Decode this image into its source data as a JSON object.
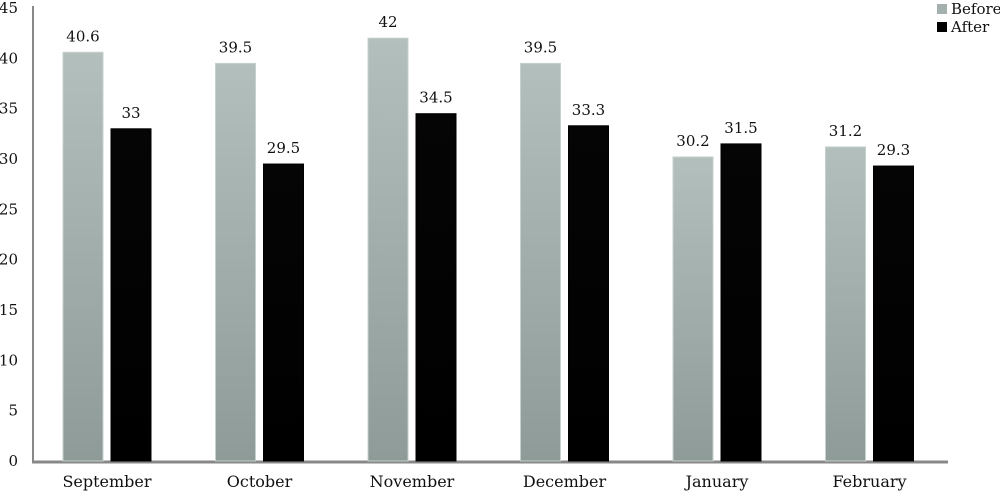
{
  "chart_data": {
    "type": "bar",
    "title": "",
    "xlabel": "",
    "ylabel": "",
    "ylim": [
      0,
      45
    ],
    "yticks": [
      0,
      5,
      10,
      15,
      20,
      25,
      30,
      35,
      40,
      45
    ],
    "grid": false,
    "legend_position": "top-right",
    "categories": [
      "September",
      "October",
      "November",
      "December",
      "January",
      "February"
    ],
    "series": [
      {
        "name": "Before",
        "color": "#a3b0ad",
        "values": [
          40.6,
          39.5,
          42,
          39.5,
          30.2,
          31.2
        ],
        "labels": [
          "40.6",
          "39.5",
          "42",
          "39.5",
          "30.2",
          "31.2"
        ]
      },
      {
        "name": "After",
        "color": "#000000",
        "values": [
          33,
          29.5,
          34.5,
          33.3,
          31.5,
          29.3
        ],
        "labels": [
          "33",
          "29.5",
          "34.5",
          "33.3",
          "31.5",
          "29.3"
        ]
      }
    ]
  }
}
